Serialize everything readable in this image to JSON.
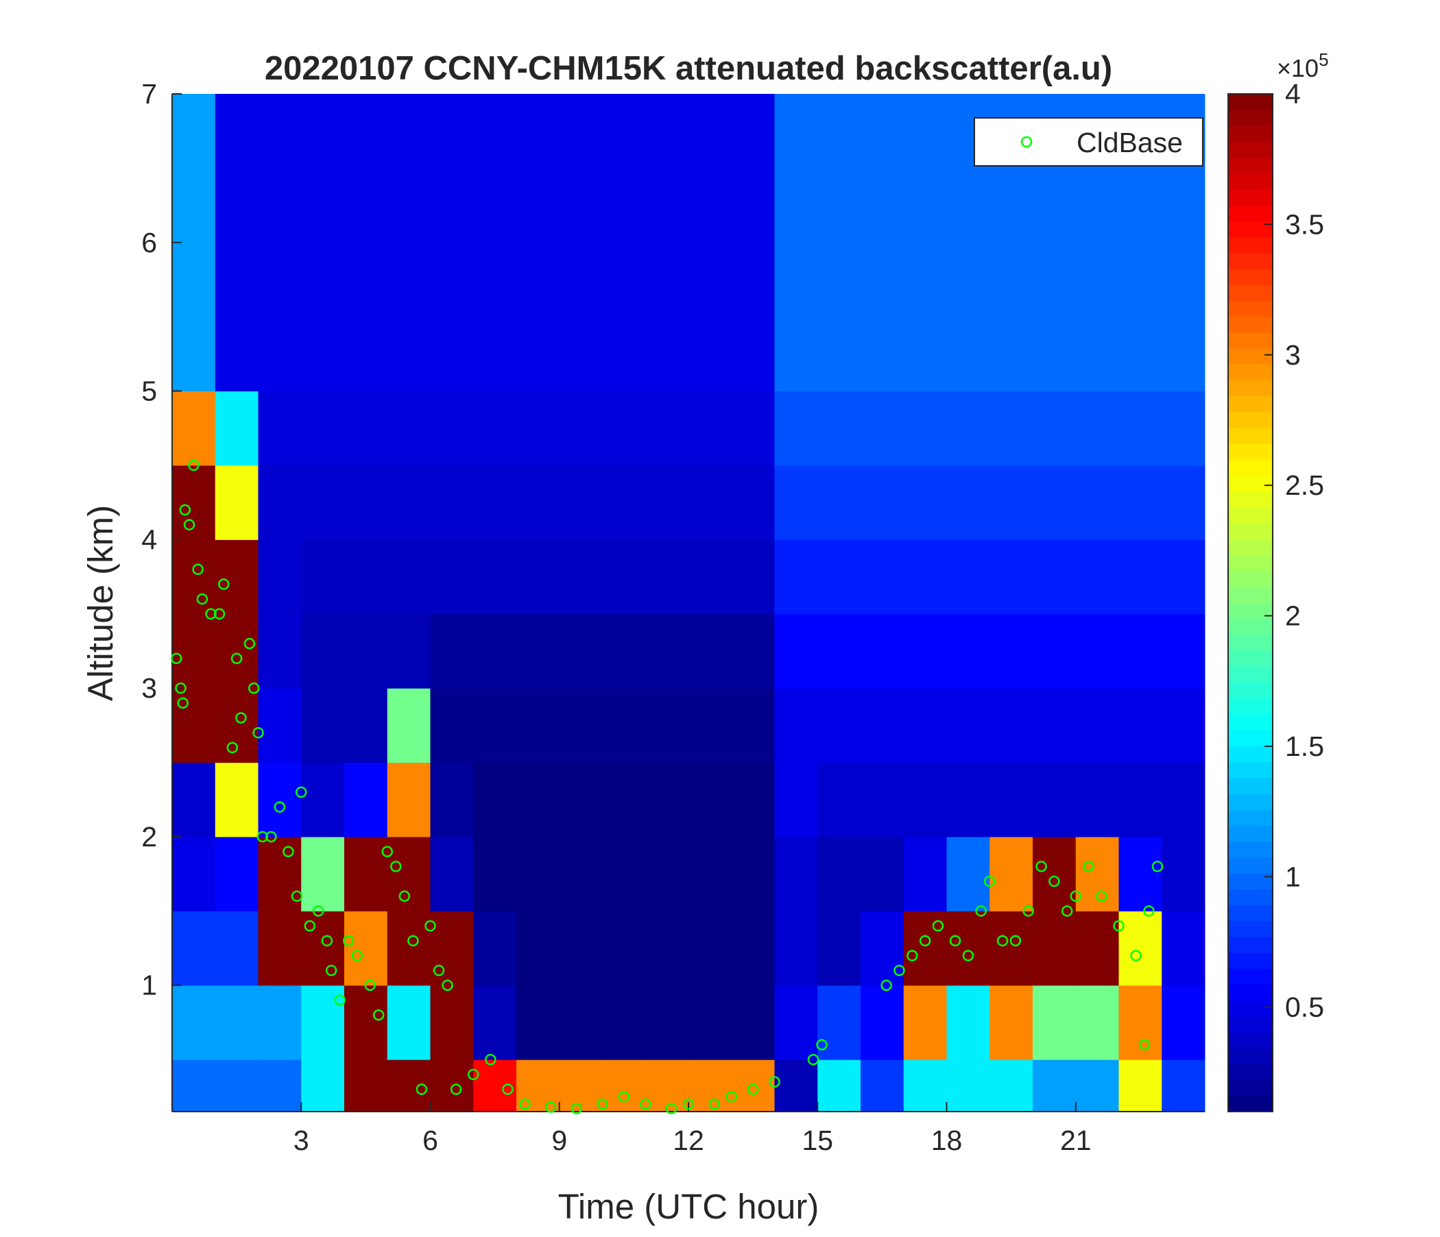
{
  "chart_data": {
    "type": "heatmap",
    "title": "20220107 CCNY-CHM15K attenuated backscatter(a.u)",
    "xlabel": "Time (UTC hour)",
    "ylabel": "Altitude (km)",
    "xlim": [
      0,
      24
    ],
    "ylim": [
      0.15,
      7
    ],
    "xticks": [
      3,
      6,
      9,
      12,
      15,
      18,
      21
    ],
    "yticks": [
      1,
      2,
      3,
      4,
      5,
      6,
      7
    ],
    "colormap": "jet",
    "clim": [
      0.1,
      4
    ],
    "cticks": [
      0.5,
      1,
      1.5,
      2,
      2.5,
      3,
      3.5,
      4
    ],
    "colorbar_label": "×10",
    "colorbar_exponent": "5",
    "x_edges": [
      0,
      1,
      2,
      3,
      4,
      5,
      6,
      7,
      8,
      9,
      10,
      11,
      12,
      13,
      14,
      15,
      16,
      17,
      18,
      19,
      20,
      21,
      22,
      23,
      24
    ],
    "y_edges": [
      0.15,
      0.5,
      1,
      1.5,
      2,
      2.5,
      3,
      3.5,
      4,
      4.5,
      5,
      5.5,
      6,
      6.5,
      7
    ],
    "z": [
      [
        1,
        1,
        1,
        1.5,
        4,
        4,
        4,
        3.5,
        3,
        3,
        3,
        3,
        3,
        3,
        0.3,
        1.5,
        0.8,
        1.5,
        1.5,
        1.5,
        1.2,
        1.2,
        2.5,
        0.8
      ],
      [
        1.2,
        1.2,
        1.2,
        1.5,
        4,
        1.5,
        4,
        0.3,
        0.1,
        0.1,
        0.1,
        0.1,
        0.1,
        0.1,
        0.5,
        0.8,
        0.6,
        3,
        1.5,
        3,
        2,
        2,
        3,
        0.6
      ],
      [
        0.8,
        0.8,
        4,
        4,
        3,
        4,
        4,
        0.2,
        0.1,
        0.1,
        0.1,
        0.1,
        0.1,
        0.1,
        0.4,
        0.3,
        0.5,
        4,
        4,
        4,
        4,
        4,
        2.5,
        0.5
      ],
      [
        0.5,
        0.6,
        4,
        2,
        4,
        4,
        0.3,
        0.1,
        0.1,
        0.1,
        0.1,
        0.1,
        0.1,
        0.1,
        0.4,
        0.3,
        0.3,
        0.5,
        1,
        3,
        4,
        3,
        0.6,
        0.4
      ],
      [
        0.4,
        2.5,
        0.6,
        0.4,
        0.6,
        3,
        0.2,
        0.1,
        0.1,
        0.1,
        0.1,
        0.1,
        0.1,
        0.1,
        0.5,
        0.4,
        0.4,
        0.4,
        0.4,
        0.4,
        0.4,
        0.4,
        0.4,
        0.4
      ],
      [
        4,
        4,
        0.5,
        0.3,
        0.3,
        2,
        0.15,
        0.15,
        0.15,
        0.15,
        0.15,
        0.15,
        0.15,
        0.15,
        0.5,
        0.5,
        0.5,
        0.5,
        0.5,
        0.5,
        0.5,
        0.5,
        0.5,
        0.5
      ],
      [
        4,
        4,
        0.4,
        0.3,
        0.3,
        0.3,
        0.2,
        0.2,
        0.2,
        0.2,
        0.2,
        0.2,
        0.2,
        0.2,
        0.6,
        0.6,
        0.6,
        0.6,
        0.6,
        0.6,
        0.6,
        0.6,
        0.6,
        0.6
      ],
      [
        4,
        4,
        0.4,
        0.35,
        0.35,
        0.35,
        0.35,
        0.35,
        0.35,
        0.35,
        0.35,
        0.35,
        0.35,
        0.35,
        0.7,
        0.7,
        0.7,
        0.7,
        0.7,
        0.7,
        0.7,
        0.7,
        0.7,
        0.7
      ],
      [
        4,
        2.5,
        0.4,
        0.4,
        0.4,
        0.4,
        0.4,
        0.4,
        0.4,
        0.4,
        0.4,
        0.4,
        0.4,
        0.4,
        0.8,
        0.8,
        0.8,
        0.8,
        0.8,
        0.8,
        0.8,
        0.8,
        0.8,
        0.8
      ],
      [
        3,
        1.5,
        0.45,
        0.45,
        0.45,
        0.45,
        0.45,
        0.45,
        0.45,
        0.45,
        0.45,
        0.45,
        0.45,
        0.45,
        0.9,
        0.9,
        0.9,
        0.9,
        0.9,
        0.9,
        0.9,
        0.9,
        0.9,
        0.9
      ],
      [
        1.2,
        0.5,
        0.5,
        0.5,
        0.5,
        0.5,
        0.5,
        0.5,
        0.5,
        0.5,
        0.5,
        0.5,
        0.5,
        0.5,
        1,
        1,
        1,
        1,
        1,
        1,
        1,
        1,
        1,
        1
      ],
      [
        1.2,
        0.5,
        0.5,
        0.5,
        0.5,
        0.5,
        0.5,
        0.5,
        0.5,
        0.5,
        0.5,
        0.5,
        0.5,
        0.5,
        1,
        1,
        1,
        1,
        1,
        1,
        1,
        1,
        1,
        1
      ],
      [
        1.2,
        0.5,
        0.5,
        0.5,
        0.5,
        0.5,
        0.5,
        0.5,
        0.5,
        0.5,
        0.5,
        0.5,
        0.5,
        0.5,
        1,
        1,
        1,
        1,
        1,
        1,
        1,
        1,
        1,
        1
      ],
      [
        1.2,
        0.5,
        0.5,
        0.5,
        0.5,
        0.5,
        0.5,
        0.5,
        0.5,
        0.5,
        0.5,
        0.5,
        0.5,
        0.5,
        1,
        1,
        1,
        1,
        1,
        1,
        1,
        1,
        1,
        1
      ]
    ],
    "series": [
      {
        "name": "CldBase",
        "color": "#00ff00",
        "x": [
          0.1,
          0.2,
          0.25,
          0.3,
          0.4,
          0.5,
          0.6,
          0.7,
          0.9,
          1.1,
          1.2,
          1.4,
          1.5,
          1.6,
          1.8,
          1.9,
          2.0,
          2.1,
          2.3,
          2.5,
          2.7,
          2.9,
          3.0,
          3.2,
          3.4,
          3.6,
          3.7,
          3.9,
          4.1,
          4.3,
          4.6,
          4.8,
          5.0,
          5.2,
          5.4,
          5.6,
          5.8,
          6.0,
          6.2,
          6.4,
          6.6,
          7.0,
          7.4,
          7.8,
          8.2,
          8.8,
          9.4,
          10.0,
          10.5,
          11.0,
          11.6,
          12.0,
          12.6,
          13.0,
          13.5,
          14.0,
          14.9,
          15.1,
          16.6,
          16.9,
          17.2,
          17.5,
          17.8,
          18.2,
          18.5,
          18.8,
          19.0,
          19.3,
          19.6,
          19.9,
          20.2,
          20.5,
          20.8,
          21.0,
          21.3,
          21.6,
          22.0,
          22.4,
          22.6,
          22.7,
          22.9
        ],
        "values": [
          3.2,
          3.0,
          2.9,
          4.2,
          4.1,
          4.5,
          3.8,
          3.6,
          3.5,
          3.5,
          3.7,
          2.6,
          3.2,
          2.8,
          3.3,
          3.0,
          2.7,
          2.0,
          2.0,
          2.2,
          1.9,
          1.6,
          2.3,
          1.4,
          1.5,
          1.3,
          1.1,
          0.9,
          1.3,
          1.2,
          1.0,
          0.8,
          1.9,
          1.8,
          1.6,
          1.3,
          0.3,
          1.4,
          1.1,
          1.0,
          0.3,
          0.4,
          0.5,
          0.3,
          0.2,
          0.18,
          0.17,
          0.2,
          0.25,
          0.2,
          0.17,
          0.2,
          0.2,
          0.25,
          0.3,
          0.35,
          0.5,
          0.6,
          1.0,
          1.1,
          1.2,
          1.3,
          1.4,
          1.3,
          1.2,
          1.5,
          1.7,
          1.3,
          1.3,
          1.5,
          1.8,
          1.7,
          1.5,
          1.6,
          1.8,
          1.6,
          1.4,
          1.2,
          0.6,
          1.5,
          1.8
        ]
      }
    ],
    "legend": "upper right"
  }
}
